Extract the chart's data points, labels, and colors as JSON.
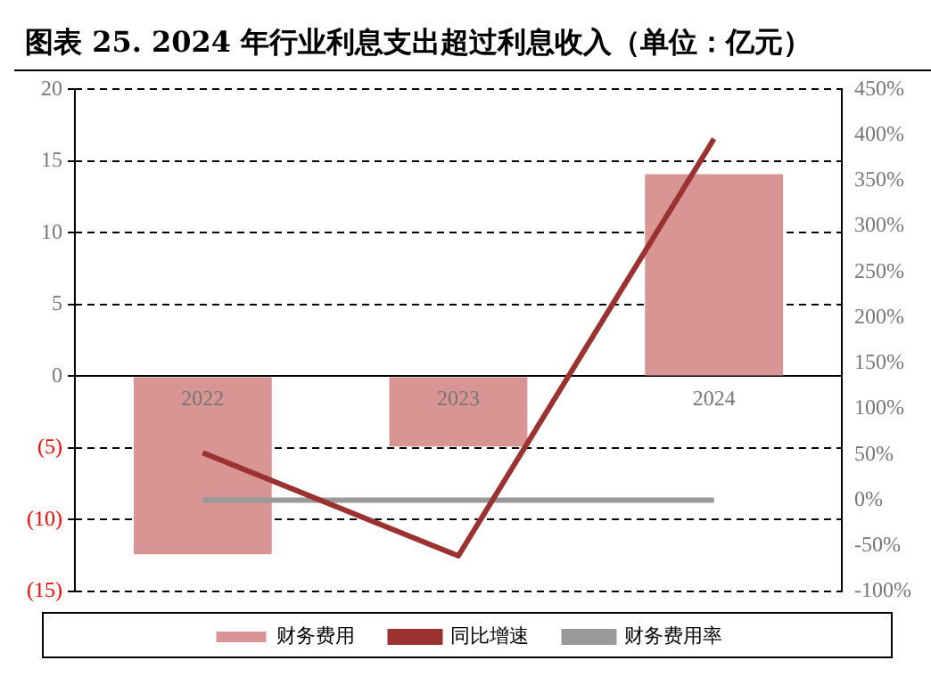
{
  "chart_data": {
    "type": "bar",
    "title": "图表 25. 2024 年行业利息支出超过利息收入（单位：亿元）",
    "categories": [
      "2022",
      "2023",
      "2024"
    ],
    "series": [
      {
        "name": "财务费用",
        "color": "#d99594",
        "values": [
          -12.4,
          -4.9,
          14.1
        ]
      },
      {
        "name": "同比增速",
        "type": "line",
        "axis": "y2",
        "color": "#9b3232",
        "values": [
          52,
          -61,
          396
        ]
      },
      {
        "name": "财务费用率",
        "type": "line",
        "axis": "y2",
        "color": "#999999",
        "values": [
          0,
          0,
          0
        ]
      }
    ],
    "ylim": [
      -15,
      20
    ],
    "yticks": [
      {
        "value": -15,
        "label": "(15)"
      },
      {
        "value": -10,
        "label": "(10)"
      },
      {
        "value": -5,
        "label": "(5)"
      },
      0,
      5,
      10,
      15,
      20
    ],
    "y2lim": [
      -100,
      450
    ],
    "y2ticks": [
      {
        "value": -100,
        "label": "-100%"
      },
      {
        "value": -50,
        "label": "-50%"
      },
      {
        "value": 0,
        "label": "0%"
      },
      {
        "value": 50,
        "label": "50%"
      },
      {
        "value": 100,
        "label": "100%"
      },
      {
        "value": 150,
        "label": "150%"
      },
      {
        "value": 200,
        "label": "200%"
      },
      {
        "value": 250,
        "label": "250%"
      },
      {
        "value": 300,
        "label": "300%"
      },
      {
        "value": 350,
        "label": "350%"
      },
      {
        "value": 400,
        "label": "400%"
      },
      {
        "value": 450,
        "label": "450%"
      }
    ],
    "grid": "y",
    "legend": "bottom",
    "line_style": "solid",
    "marker": "none"
  }
}
